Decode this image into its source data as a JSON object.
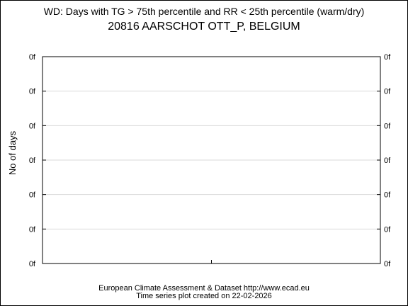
{
  "chart_data": {
    "type": "line",
    "title": "WD: Days with TG > 75th percentile and RR < 25th percentile (warm/dry)",
    "subtitle": "20816 AARSCHOT OTT_P, BELGIUM",
    "ylabel": "No of days",
    "xlabel": "",
    "y_tick_labels": [
      "0f",
      "0f",
      "0f",
      "0f",
      "0f",
      "0f",
      "0f"
    ],
    "x_tick_count": 1,
    "series": [],
    "grid": true
  },
  "footer": {
    "line1": "European Climate Assessment & Dataset  http://www.ecad.eu",
    "line2": "Time series plot created on 22-02-2026"
  },
  "colors": {
    "grid": "#d9d9d9",
    "axis": "#000000"
  }
}
